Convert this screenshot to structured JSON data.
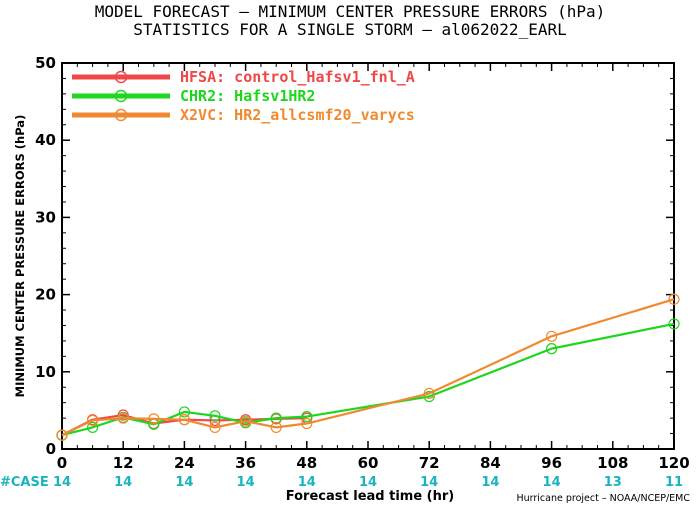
{
  "chart_data": {
    "type": "line",
    "title": "MODEL FORECAST – MINIMUM CENTER PRESSURE ERRORS (hPa)",
    "subtitle": "STATISTICS FOR A SINGLE STORM – al062022_EARL",
    "xlabel": "Forecast lead time (hr)",
    "ylabel": "MINIMUM CENTER PRESSURE ERRORS (hPa)",
    "xlim": [
      0,
      120
    ],
    "ylim": [
      0,
      50
    ],
    "xticks": [
      0,
      12,
      24,
      36,
      48,
      60,
      72,
      84,
      96,
      108,
      120
    ],
    "yticks": [
      0,
      10,
      20,
      30,
      40,
      50
    ],
    "case_label": "#CASE",
    "case_counts": [
      "14",
      "14",
      "14",
      "14",
      "14",
      "14",
      "14",
      "14",
      "14",
      "13",
      "11"
    ],
    "credit": "Hurricane project – NOAA/NCEP/EMC",
    "legend_position": "top-left",
    "series": [
      {
        "name": "HFSA:  control_Hafsv1_fnl_A",
        "color": "#f04848",
        "x": [
          0,
          6,
          12,
          18,
          24,
          30,
          36,
          42,
          48
        ],
        "y": [
          1.8,
          3.8,
          4.4,
          3.3,
          3.8,
          3.7,
          3.8,
          3.9,
          4.0
        ]
      },
      {
        "name": "CHR2:  Hafsv1HR2",
        "color": "#1ed61e",
        "x": [
          0,
          6,
          12,
          18,
          24,
          30,
          36,
          42,
          48,
          72,
          96,
          120
        ],
        "y": [
          1.8,
          2.8,
          4.1,
          3.2,
          4.8,
          4.3,
          3.4,
          4.0,
          4.2,
          6.8,
          13.0,
          16.2
        ]
      },
      {
        "name": "X2VC:  HR2_allcsmf20_varycs",
        "color": "#f08a30",
        "x": [
          0,
          6,
          12,
          18,
          24,
          30,
          36,
          42,
          48,
          72,
          96,
          120
        ],
        "y": [
          1.8,
          3.7,
          4.0,
          3.9,
          3.8,
          2.8,
          3.6,
          2.8,
          3.3,
          7.2,
          14.6,
          19.4
        ]
      }
    ]
  }
}
